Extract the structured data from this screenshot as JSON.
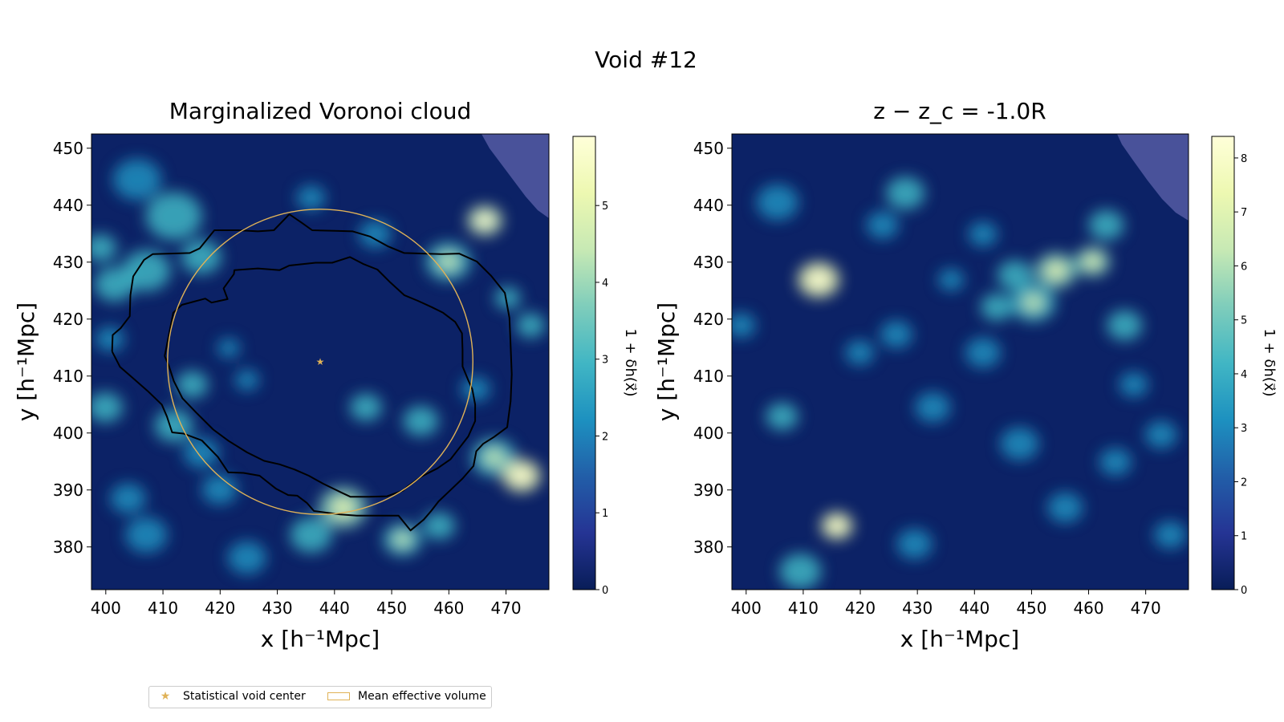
{
  "figure": {
    "suptitle": "Void #12",
    "colors": {
      "colormap": [
        "#081d58",
        "#253494",
        "#225ea8",
        "#1d91c0",
        "#41b6c4",
        "#7fcdbb",
        "#c7e9b4",
        "#edf8b1",
        "#ffffd9"
      ],
      "contour": "#000000",
      "circle": "#e0b257",
      "mask": "#5058a0"
    }
  },
  "legend": {
    "items": [
      {
        "label": "Statistical void center",
        "marker": "star"
      },
      {
        "label": "Mean effective volume",
        "marker": "rect"
      }
    ]
  },
  "chart_data": [
    {
      "type": "heatmap",
      "title": "Marginalized Voronoi cloud",
      "xlabel": "x [h⁻¹Mpc]",
      "ylabel": "y [h⁻¹Mpc]",
      "xlim": [
        397.5,
        477.5
      ],
      "ylim": [
        372.5,
        452.5
      ],
      "xticks": [
        400,
        410,
        420,
        430,
        440,
        450,
        460,
        470
      ],
      "yticks": [
        380,
        390,
        400,
        410,
        420,
        430,
        440,
        450
      ],
      "colorbar": {
        "label": "1 + δh(x⃗)",
        "range": [
          0,
          5.9
        ],
        "ticks": [
          0,
          1,
          2,
          3,
          4,
          5
        ]
      },
      "void_center": {
        "x": 437.5,
        "y": 412.5
      },
      "effective_radius": 26.7,
      "contours": [
        [
          [
            410.3,
            413.5
          ],
          [
            411.8,
            421.1
          ],
          [
            413.3,
            422.5
          ],
          [
            417.4,
            423.6
          ],
          [
            418.5,
            422.9
          ],
          [
            421.3,
            423.5
          ],
          [
            420.6,
            425.4
          ],
          [
            422.4,
            427.9
          ],
          [
            422.5,
            428.6
          ],
          [
            426.6,
            428.9
          ],
          [
            430.4,
            428.6
          ],
          [
            432.1,
            429.4
          ],
          [
            436.7,
            429.9
          ],
          [
            439.6,
            429.9
          ],
          [
            442.7,
            430.9
          ],
          [
            445.0,
            429.7
          ],
          [
            447.5,
            428.7
          ],
          [
            449.8,
            426.4
          ],
          [
            452.2,
            424.2
          ],
          [
            454.6,
            423.2
          ],
          [
            457.0,
            422.1
          ],
          [
            459.0,
            421.1
          ],
          [
            461.1,
            419.5
          ],
          [
            462.3,
            417.5
          ],
          [
            462.4,
            414.6
          ],
          [
            462.4,
            411.7
          ],
          [
            463.3,
            409.5
          ],
          [
            464.1,
            407.7
          ],
          [
            464.6,
            405.0
          ],
          [
            464.6,
            402.1
          ],
          [
            463.4,
            399.4
          ],
          [
            462.0,
            397.6
          ],
          [
            460.3,
            395.4
          ],
          [
            458.0,
            393.8
          ],
          [
            455.1,
            392.3
          ],
          [
            452.9,
            390.7
          ],
          [
            452.0,
            389.9
          ],
          [
            449.2,
            388.9
          ],
          [
            446.0,
            388.8
          ],
          [
            442.8,
            388.8
          ],
          [
            441.3,
            389.5
          ],
          [
            438.0,
            391.1
          ],
          [
            435.5,
            392.5
          ],
          [
            433.0,
            393.6
          ],
          [
            430.4,
            394.5
          ],
          [
            427.7,
            395.1
          ],
          [
            424.7,
            396.6
          ],
          [
            421.5,
            398.6
          ],
          [
            418.8,
            400.6
          ],
          [
            415.8,
            403.6
          ],
          [
            413.4,
            406.1
          ],
          [
            411.9,
            409.1
          ],
          [
            411.0,
            411.9
          ],
          [
            410.3,
            413.5
          ]
        ],
        [
          [
            401.1,
            414.3
          ],
          [
            401.2,
            417.2
          ],
          [
            402.6,
            418.4
          ],
          [
            404.2,
            420.5
          ],
          [
            404.3,
            424.2
          ],
          [
            404.8,
            427.5
          ],
          [
            406.7,
            430.4
          ],
          [
            408.2,
            431.4
          ],
          [
            411.2,
            431.5
          ],
          [
            414.7,
            431.6
          ],
          [
            416.4,
            432.4
          ],
          [
            419.0,
            435.6
          ],
          [
            423.2,
            435.6
          ],
          [
            426.6,
            435.4
          ],
          [
            429.4,
            435.6
          ],
          [
            432.1,
            438.4
          ],
          [
            434.3,
            436.9
          ],
          [
            436.1,
            435.6
          ],
          [
            440.2,
            435.5
          ],
          [
            443.2,
            435.4
          ],
          [
            446.2,
            434.5
          ],
          [
            449.3,
            432.8
          ],
          [
            452.2,
            431.6
          ],
          [
            455.6,
            431.5
          ],
          [
            458.7,
            431.4
          ],
          [
            461.8,
            431.5
          ],
          [
            464.9,
            430.1
          ],
          [
            467.4,
            427.6
          ],
          [
            469.8,
            424.6
          ],
          [
            470.6,
            420.2
          ],
          [
            470.8,
            415.3
          ],
          [
            471.0,
            410.3
          ],
          [
            470.8,
            405.6
          ],
          [
            470.2,
            401.0
          ],
          [
            467.9,
            399.3
          ],
          [
            466.0,
            398.1
          ],
          [
            464.8,
            396.8
          ],
          [
            464.3,
            394.2
          ],
          [
            462.4,
            392.0
          ],
          [
            460.1,
            389.8
          ],
          [
            458.2,
            388.0
          ],
          [
            456.9,
            386.3
          ],
          [
            455.6,
            384.8
          ],
          [
            453.3,
            382.9
          ],
          [
            451.2,
            385.5
          ],
          [
            447.6,
            385.5
          ],
          [
            443.9,
            385.5
          ],
          [
            441.0,
            385.7
          ],
          [
            438.7,
            386.0
          ],
          [
            436.4,
            386.3
          ],
          [
            435.2,
            387.7
          ],
          [
            433.5,
            389.0
          ],
          [
            431.9,
            389.1
          ],
          [
            429.8,
            390.2
          ],
          [
            426.9,
            392.5
          ],
          [
            424.1,
            393.0
          ],
          [
            421.4,
            393.1
          ],
          [
            419.6,
            395.8
          ],
          [
            416.8,
            398.7
          ],
          [
            413.6,
            399.9
          ],
          [
            411.6,
            400.1
          ],
          [
            410.7,
            402.9
          ],
          [
            409.8,
            405.0
          ],
          [
            407.3,
            407.4
          ],
          [
            404.8,
            409.6
          ],
          [
            402.5,
            411.6
          ],
          [
            401.1,
            414.3
          ]
        ]
      ]
    },
    {
      "type": "heatmap",
      "title": "z − z_c = -1.0R",
      "xlabel": "x [h⁻¹Mpc]",
      "ylabel": "y [h⁻¹Mpc]",
      "xlim": [
        397.5,
        477.5
      ],
      "ylim": [
        372.5,
        452.5
      ],
      "xticks": [
        400,
        410,
        420,
        430,
        440,
        450,
        460,
        470
      ],
      "yticks": [
        380,
        390,
        400,
        410,
        420,
        430,
        440,
        450
      ],
      "colorbar": {
        "label": "1 + δh(x⃗)",
        "range": [
          0,
          8.4
        ],
        "ticks": [
          0,
          1,
          2,
          3,
          4,
          5,
          6,
          7,
          8
        ]
      }
    }
  ]
}
